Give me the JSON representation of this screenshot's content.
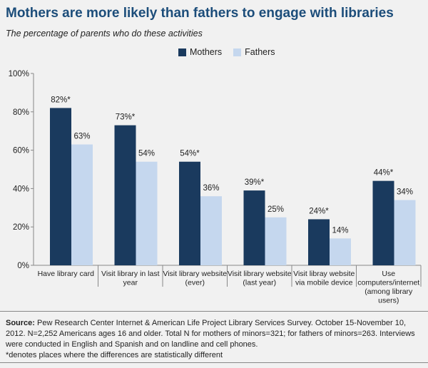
{
  "title": "Mothers are more likely than fathers to engage with libraries",
  "subtitle": "The percentage of parents who do these activities",
  "colors": {
    "mothers": "#1a3a5e",
    "fathers": "#c5d7ee"
  },
  "chart_data": {
    "type": "bar",
    "categories": [
      [
        "Have library card"
      ],
      [
        "Visit library in last",
        "year"
      ],
      [
        "Visit library website",
        "(ever)"
      ],
      [
        "Visit library website",
        "(last year)"
      ],
      [
        "Visit libray website",
        "via mobile device"
      ],
      [
        "Use",
        "computers/internet",
        "(among library",
        "users)"
      ]
    ],
    "series": [
      {
        "name": "Mothers",
        "values": [
          82,
          73,
          54,
          39,
          24,
          44
        ],
        "labels": [
          "82%*",
          "73%*",
          "54%*",
          "39%*",
          "24%*",
          "44%*"
        ]
      },
      {
        "name": "Fathers",
        "values": [
          63,
          54,
          36,
          25,
          14,
          34
        ],
        "labels": [
          "63%",
          "54%",
          "36%",
          "25%",
          "14%",
          "34%"
        ]
      }
    ],
    "yticks": [
      "0%",
      "20%",
      "40%",
      "60%",
      "80%",
      "100%"
    ],
    "ylim": [
      0,
      100
    ],
    "legend": "top-center"
  },
  "source": {
    "label": "Source:",
    "text": " Pew Research Center Internet & American Life Project Library Services Survey. October 15-November 10, 2012. N=2,252 Americans ages 16 and older. Total N for mothers of minors=321; for fathers of minors=263. Interviews were conducted in English and Spanish and on landline and cell phones.",
    "note": "*denotes places where the differences are statistically different"
  }
}
